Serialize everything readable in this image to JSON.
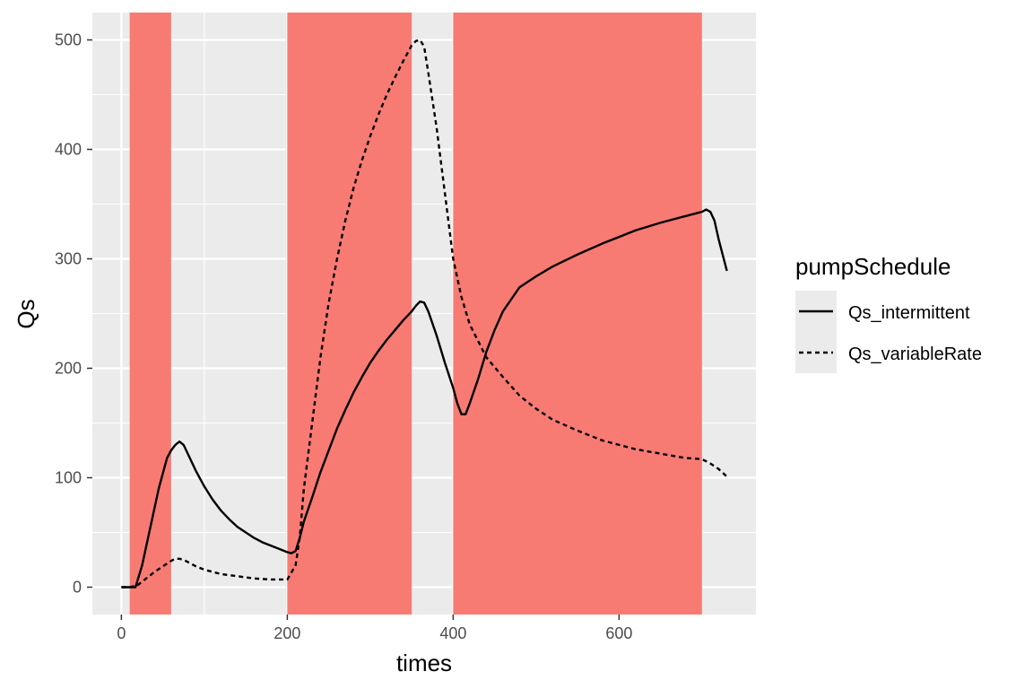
{
  "chart_data": {
    "type": "line",
    "xlabel": "times",
    "ylabel": "Qs",
    "xlim": [
      -35,
      765
    ],
    "ylim": [
      -25,
      525
    ],
    "x_ticks": [
      0,
      200,
      400,
      600
    ],
    "y_ticks": [
      0,
      100,
      200,
      300,
      400,
      500
    ],
    "grid": true,
    "legend": {
      "title": "pumpSchedule",
      "position": "right"
    },
    "shaded_intervals": [
      {
        "start": 10,
        "end": 60
      },
      {
        "start": 200,
        "end": 350
      },
      {
        "start": 400,
        "end": 700
      }
    ],
    "series": [
      {
        "name": "Qs_intermittent",
        "linetype": "solid",
        "x": [
          0,
          10,
          17,
          25,
          35,
          45,
          55,
          60,
          65,
          70,
          75,
          80,
          90,
          100,
          110,
          120,
          130,
          140,
          150,
          160,
          170,
          180,
          190,
          200,
          205,
          210,
          215,
          220,
          230,
          240,
          250,
          260,
          270,
          280,
          290,
          300,
          310,
          320,
          330,
          340,
          350,
          355,
          360,
          365,
          370,
          380,
          390,
          400,
          405,
          410,
          415,
          420,
          430,
          440,
          450,
          460,
          480,
          500,
          520,
          550,
          580,
          600,
          620,
          650,
          680,
          700,
          705,
          710,
          715,
          720,
          730
        ],
        "y": [
          0,
          0,
          0,
          20,
          55,
          90,
          118,
          125,
          130,
          133,
          130,
          122,
          106,
          92,
          80,
          70,
          62,
          55,
          50,
          45,
          41,
          38,
          35,
          32,
          31,
          33,
          45,
          60,
          82,
          105,
          125,
          145,
          162,
          178,
          192,
          205,
          216,
          226,
          235,
          244,
          252,
          257,
          261,
          260,
          252,
          230,
          205,
          182,
          168,
          158,
          158,
          168,
          190,
          215,
          235,
          252,
          274,
          284,
          293,
          304,
          314,
          320,
          326,
          333,
          339,
          343,
          345,
          343,
          335,
          318,
          289
        ]
      },
      {
        "name": "Qs_variableRate",
        "linetype": "dashed",
        "x": [
          0,
          10,
          20,
          30,
          40,
          50,
          60,
          65,
          70,
          75,
          80,
          90,
          100,
          120,
          140,
          160,
          180,
          200,
          210,
          215,
          220,
          230,
          240,
          250,
          260,
          270,
          280,
          290,
          300,
          310,
          320,
          330,
          340,
          350,
          355,
          360,
          365,
          370,
          380,
          390,
          400,
          410,
          420,
          440,
          460,
          480,
          500,
          520,
          550,
          580,
          600,
          620,
          650,
          680,
          700,
          710,
          720,
          730
        ],
        "y": [
          0,
          0,
          2,
          8,
          14,
          19,
          24,
          26,
          26,
          25,
          23,
          19,
          16,
          12,
          10,
          8,
          7,
          7,
          20,
          45,
          90,
          150,
          210,
          260,
          300,
          335,
          365,
          390,
          412,
          432,
          450,
          466,
          481,
          495,
          499,
          500,
          494,
          470,
          420,
          360,
          300,
          265,
          240,
          210,
          192,
          175,
          163,
          153,
          143,
          134,
          130,
          126,
          122,
          118,
          117,
          113,
          108,
          101
        ]
      }
    ]
  }
}
